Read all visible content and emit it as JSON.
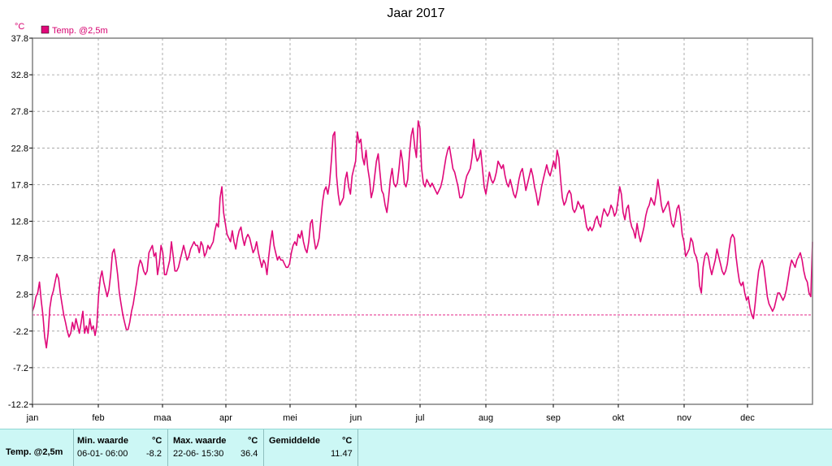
{
  "chart_data": {
    "type": "line",
    "title": "Jaar 2017",
    "unit": "°C",
    "series": [
      {
        "name": "Temp. @2,5m",
        "color": "#e0087a",
        "values": [
          0.5,
          1.2,
          2.5,
          3.0,
          4.5,
          2.0,
          0.0,
          -3.0,
          -4.5,
          -2.5,
          1.0,
          2.5,
          3.3,
          4.5,
          5.6,
          5.0,
          3.0,
          1.5,
          0.0,
          -1.0,
          -2.2,
          -3.0,
          -2.5,
          -1.0,
          -2.0,
          -0.5,
          -1.5,
          -2.5,
          -1.0,
          0.5,
          -2.5,
          -1.5,
          -2.5,
          -0.5,
          -2.0,
          -1.5,
          -2.8,
          -1.5,
          2.5,
          5.0,
          6.0,
          4.5,
          3.5,
          2.5,
          3.5,
          5.5,
          8.5,
          9.0,
          7.5,
          5.5,
          3.0,
          1.5,
          0.0,
          -1.0,
          -2.0,
          -2.0,
          -1.0,
          0.5,
          1.5,
          3.0,
          4.5,
          6.5,
          7.5,
          7.0,
          6.0,
          5.5,
          6.0,
          8.5,
          9.0,
          9.5,
          8.0,
          8.5,
          5.5,
          7.0,
          9.5,
          8.5,
          5.5,
          5.5,
          6.5,
          7.5,
          10.0,
          8.0,
          6.0,
          6.0,
          6.5,
          7.5,
          8.5,
          9.5,
          8.5,
          7.5,
          8.0,
          9.0,
          9.5,
          10.0,
          9.5,
          9.5,
          8.5,
          10.0,
          9.5,
          8.0,
          8.5,
          9.5,
          9.0,
          9.5,
          10.0,
          11.5,
          12.5,
          12.0,
          16.0,
          17.5,
          14.0,
          12.5,
          11.0,
          10.5,
          10.0,
          11.5,
          10.0,
          9.0,
          10.5,
          11.5,
          12.0,
          10.5,
          9.5,
          10.5,
          11.0,
          10.5,
          9.5,
          8.5,
          9.0,
          10.0,
          8.5,
          7.5,
          6.5,
          7.5,
          7.0,
          5.5,
          8.0,
          10.0,
          11.5,
          9.5,
          8.5,
          7.5,
          8.0,
          7.5,
          7.5,
          7.0,
          6.5,
          6.5,
          7.0,
          8.5,
          9.5,
          10.0,
          9.5,
          11.0,
          10.5,
          11.5,
          10.0,
          9.0,
          8.5,
          10.0,
          12.5,
          13.0,
          10.5,
          9.0,
          9.5,
          10.5,
          13.0,
          15.5,
          17.0,
          17.5,
          16.5,
          18.0,
          21.0,
          24.5,
          25.0,
          19.0,
          16.5,
          15.0,
          15.5,
          16.0,
          18.5,
          19.5,
          17.5,
          16.5,
          19.0,
          20.0,
          21.0,
          25.0,
          23.5,
          24.0,
          21.5,
          20.5,
          22.5,
          20.0,
          18.5,
          16.0,
          17.0,
          19.0,
          21.0,
          22.0,
          19.5,
          17.0,
          16.5,
          15.0,
          14.0,
          16.0,
          18.5,
          20.0,
          18.0,
          17.5,
          18.0,
          20.0,
          22.5,
          21.0,
          18.0,
          17.5,
          18.5,
          22.0,
          24.5,
          25.5,
          23.0,
          21.5,
          26.5,
          25.5,
          20.0,
          18.0,
          17.5,
          18.5,
          18.0,
          17.5,
          18.0,
          17.5,
          17.0,
          16.5,
          17.0,
          17.5,
          18.5,
          20.0,
          21.5,
          22.5,
          23.0,
          21.5,
          20.0,
          19.5,
          18.5,
          17.5,
          16.0,
          16.0,
          16.5,
          18.0,
          19.0,
          19.5,
          20.0,
          21.5,
          24.0,
          22.0,
          21.0,
          21.5,
          22.5,
          20.0,
          17.5,
          16.5,
          18.0,
          19.5,
          18.5,
          18.0,
          18.5,
          19.5,
          21.0,
          20.5,
          20.0,
          20.5,
          19.0,
          18.0,
          17.5,
          18.5,
          17.5,
          16.5,
          16.0,
          17.0,
          18.5,
          19.5,
          20.0,
          18.5,
          17.0,
          18.0,
          19.0,
          20.0,
          19.0,
          17.5,
          16.5,
          15.0,
          16.0,
          17.5,
          18.5,
          19.5,
          20.5,
          19.5,
          19.0,
          20.0,
          21.0,
          20.0,
          22.5,
          21.5,
          18.5,
          16.0,
          15.0,
          15.5,
          16.5,
          17.0,
          16.5,
          14.5,
          14.0,
          14.5,
          15.5,
          15.0,
          14.5,
          15.0,
          13.5,
          12.0,
          11.5,
          12.0,
          11.5,
          12.0,
          13.0,
          13.5,
          12.5,
          12.0,
          13.5,
          14.5,
          14.0,
          13.5,
          14.0,
          15.0,
          14.5,
          13.5,
          14.0,
          15.5,
          17.5,
          16.5,
          14.0,
          13.0,
          14.5,
          15.0,
          13.0,
          12.0,
          11.5,
          10.5,
          12.5,
          11.0,
          10.0,
          11.0,
          12.0,
          13.5,
          14.5,
          15.0,
          16.0,
          15.5,
          15.0,
          16.5,
          18.5,
          17.0,
          15.0,
          14.0,
          14.5,
          15.0,
          15.5,
          14.0,
          12.5,
          12.0,
          13.0,
          14.5,
          15.0,
          13.5,
          11.0,
          10.0,
          8.0,
          8.5,
          9.0,
          10.5,
          10.0,
          8.5,
          8.0,
          7.0,
          4.0,
          3.0,
          6.5,
          8.0,
          8.5,
          8.0,
          6.5,
          5.5,
          6.5,
          7.5,
          9.0,
          8.0,
          7.0,
          6.0,
          5.5,
          6.0,
          7.0,
          9.0,
          10.5,
          11.0,
          10.5,
          8.0,
          6.0,
          4.5,
          4.0,
          4.5,
          3.0,
          2.0,
          2.5,
          1.0,
          0.0,
          -0.5,
          1.5,
          4.0,
          6.0,
          7.0,
          7.5,
          6.5,
          4.5,
          2.5,
          1.5,
          1.0,
          0.5,
          1.0,
          2.0,
          3.0,
          3.0,
          2.5,
          2.0,
          2.5,
          3.5,
          5.0,
          6.5,
          7.5,
          7.0,
          6.5,
          7.5,
          8.0,
          8.5,
          7.5,
          6.0,
          5.0,
          4.5,
          3.0,
          2.5,
          10.0
        ]
      }
    ],
    "yticks": [
      "37.8",
      "32.8",
      "27.8",
      "22.8",
      "17.8",
      "12.8",
      "7.8",
      "2.8",
      "-2.2",
      "-7.2",
      "-12.2"
    ],
    "ylim": [
      -12.2,
      37.8
    ],
    "xticks": [
      "jan",
      "feb",
      "maa",
      "apr",
      "mei",
      "jun",
      "jul",
      "aug",
      "sep",
      "okt",
      "nov",
      "dec"
    ],
    "reference_line": 0,
    "grid": true,
    "legend": "top-left"
  },
  "summary": {
    "row_label": "Temp. @2,5m",
    "min_header": "Min. waarde",
    "min_unit": "°C",
    "min_time": "06-01-  06:00",
    "min_value": "-8.2",
    "max_header": "Max. waarde",
    "max_unit": "°C",
    "max_time": "22-06-  15:30",
    "max_value": "36.4",
    "avg_header": "Gemiddelde",
    "avg_unit": "°C",
    "avg_value": "11.47"
  }
}
